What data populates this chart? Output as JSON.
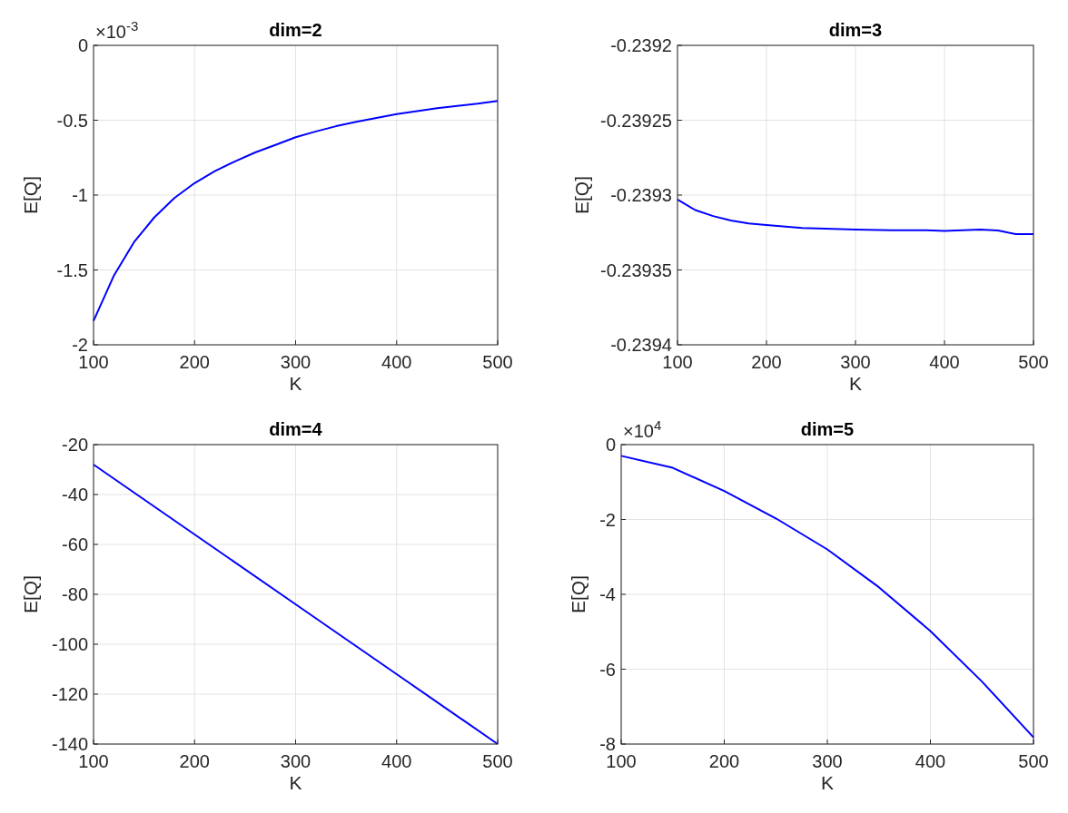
{
  "chart_data": [
    {
      "type": "line",
      "title": "dim=2",
      "xlabel": "K",
      "ylabel": "E[Q]",
      "annotations": [
        "×10$^{-3}$"
      ],
      "x": [
        100,
        120,
        140,
        160,
        180,
        200,
        220,
        240,
        260,
        280,
        300,
        320,
        340,
        360,
        380,
        400,
        420,
        440,
        460,
        480,
        500
      ],
      "series": [
        {
          "color": "#0000ff",
          "values": [
            -1.84,
            -1.54,
            -1.315,
            -1.15,
            -1.02,
            -0.92,
            -0.84,
            -0.775,
            -0.715,
            -0.665,
            -0.614,
            -0.575,
            -0.54,
            -0.51,
            -0.485,
            -0.459,
            -0.44,
            -0.42,
            -0.405,
            -0.39,
            -0.371
          ]
        }
      ],
      "xlim": [
        100,
        500
      ],
      "xticks": [
        100,
        200,
        300,
        400,
        500
      ],
      "ylim": [
        -2,
        0
      ],
      "yticks": [
        -2,
        -1.5,
        -1,
        -0.5,
        0
      ],
      "grid": true,
      "marker": "none",
      "line_style": "solid"
    },
    {
      "type": "line",
      "title": "dim=3",
      "xlabel": "K",
      "ylabel": "E[Q]",
      "x": [
        100,
        120,
        140,
        160,
        180,
        200,
        240,
        300,
        340,
        380,
        400,
        440,
        460,
        480,
        500
      ],
      "series": [
        {
          "color": "#0000ff",
          "values": [
            -0.239303,
            -0.23931,
            -0.239314,
            -0.239317,
            -0.239319,
            -0.23932,
            -0.239322,
            -0.239323,
            -0.2393235,
            -0.2393235,
            -0.239324,
            -0.239323,
            -0.2393237,
            -0.239326,
            -0.239326
          ]
        }
      ],
      "xlim": [
        100,
        500
      ],
      "xticks": [
        100,
        200,
        300,
        400,
        500
      ],
      "ylim": [
        -0.2394,
        -0.2392
      ],
      "yticks": [
        -0.2394,
        -0.23935,
        -0.2393,
        -0.23925,
        -0.2392
      ],
      "grid": true,
      "marker": "none",
      "line_style": "solid"
    },
    {
      "type": "line",
      "title": "dim=4",
      "xlabel": "K",
      "ylabel": "E[Q]",
      "x": [
        100,
        200,
        300,
        400,
        500
      ],
      "series": [
        {
          "color": "#0000ff",
          "values": [
            -28,
            -56,
            -84,
            -112,
            -140
          ]
        }
      ],
      "xlim": [
        100,
        500
      ],
      "xticks": [
        100,
        200,
        300,
        400,
        500
      ],
      "ylim": [
        -140,
        -20
      ],
      "yticks": [
        -140,
        -120,
        -100,
        -80,
        -60,
        -40,
        -20
      ],
      "grid": true,
      "marker": "none",
      "line_style": "solid"
    },
    {
      "type": "line",
      "title": "dim=5",
      "xlabel": "K",
      "ylabel": "E[Q]",
      "annotations": [
        "×10$^{4}$"
      ],
      "x": [
        100,
        150,
        200,
        250,
        300,
        350,
        400,
        450,
        500
      ],
      "series": [
        {
          "color": "#0000ff",
          "values": [
            -0.3,
            -0.62,
            -1.24,
            -1.97,
            -2.8,
            -3.81,
            -4.98,
            -6.33,
            -7.82
          ]
        }
      ],
      "xlim": [
        100,
        500
      ],
      "xticks": [
        100,
        200,
        300,
        400,
        500
      ],
      "ylim": [
        -8,
        0
      ],
      "yticks": [
        -8,
        -6,
        -4,
        -2,
        0
      ],
      "grid": true,
      "marker": "none",
      "line_style": "solid"
    }
  ]
}
